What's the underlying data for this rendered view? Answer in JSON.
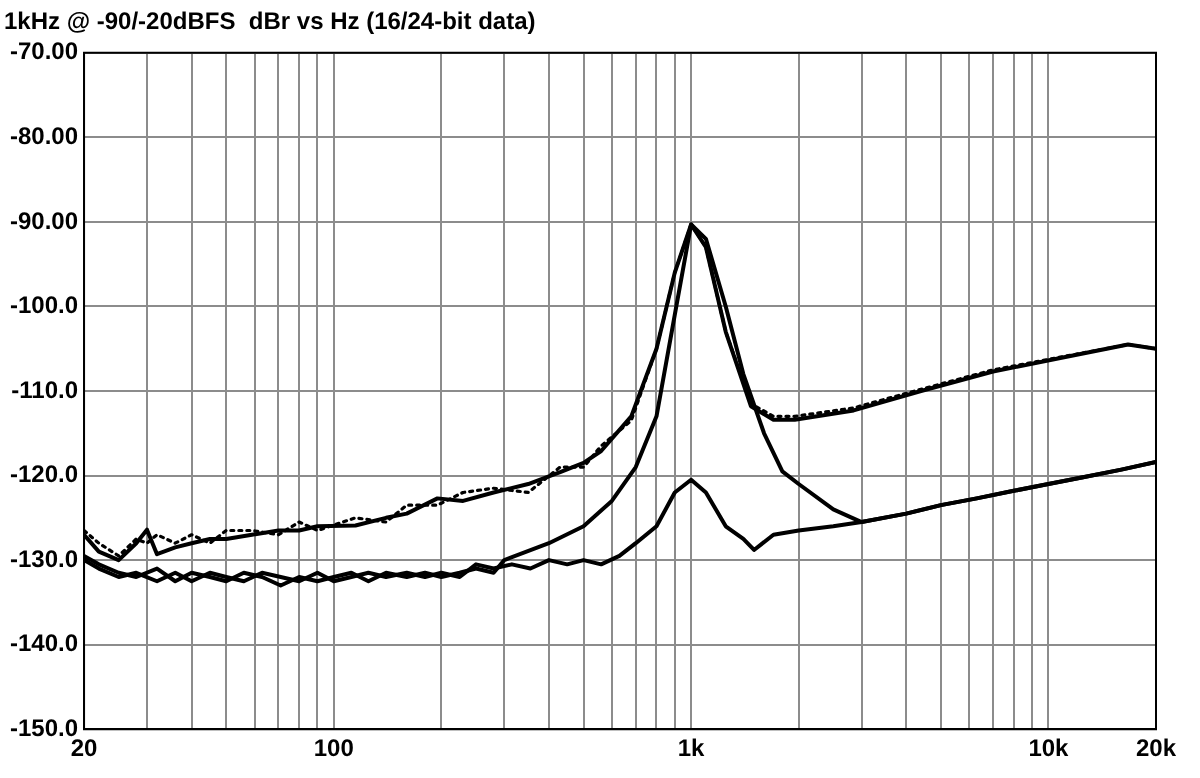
{
  "chart_data": {
    "type": "line",
    "title": "1kHz @ -90/-20dBFS  dBr vs Hz (16/24-bit data)",
    "log": "x",
    "grid": true,
    "legend": false,
    "xlim": [
      20,
      20000
    ],
    "ylim": [
      -150,
      -70
    ],
    "xticks": [
      20,
      {
        "value": 30,
        "label": null
      },
      {
        "value": 40,
        "label": null
      },
      {
        "value": 50,
        "label": null
      },
      {
        "value": 60,
        "label": null
      },
      {
        "value": 70,
        "label": null
      },
      {
        "value": 80,
        "label": null
      },
      {
        "value": 90,
        "label": null
      },
      100,
      {
        "value": 200,
        "label": null
      },
      {
        "value": 300,
        "label": null
      },
      {
        "value": 400,
        "label": null
      },
      {
        "value": 500,
        "label": null
      },
      {
        "value": 600,
        "label": null
      },
      {
        "value": 700,
        "label": null
      },
      {
        "value": 800,
        "label": null
      },
      {
        "value": 900,
        "label": null
      },
      {
        "value": 1000,
        "label": "1k"
      },
      {
        "value": 2000,
        "label": null
      },
      {
        "value": 3000,
        "label": null
      },
      {
        "value": 4000,
        "label": null
      },
      {
        "value": 5000,
        "label": null
      },
      {
        "value": 6000,
        "label": null
      },
      {
        "value": 7000,
        "label": null
      },
      {
        "value": 8000,
        "label": null
      },
      {
        "value": 9000,
        "label": null
      },
      {
        "value": 10000,
        "label": "10k"
      },
      {
        "value": 20000,
        "label": "20k"
      }
    ],
    "yticks": [
      {
        "value": -150,
        "label": "-150.0"
      },
      {
        "value": -140,
        "label": "-140.0"
      },
      {
        "value": -130,
        "label": "-130.0"
      },
      {
        "value": -120,
        "label": "-120.0"
      },
      {
        "value": -110,
        "label": "-110.0"
      },
      {
        "value": -100,
        "label": "-100.0"
      },
      {
        "value": -90,
        "label": "-90.00"
      },
      {
        "value": -80,
        "label": "-80.00"
      },
      {
        "value": -70,
        "label": "-70.00"
      }
    ],
    "series": [
      {
        "color": "#000000",
        "line_style": "solid",
        "x": [
          20,
          22,
          25,
          28,
          30,
          32,
          36,
          40,
          45,
          50,
          59,
          70,
          80,
          90,
          115,
          140,
          160,
          195,
          230,
          280,
          350,
          430,
          500,
          560,
          680,
          800,
          900,
          1000,
          1100,
          1250,
          1470,
          1700,
          1950,
          2850,
          4400,
          7000,
          10800,
          16700,
          20000
        ],
        "values": [
          -127,
          -129,
          -130,
          -128,
          -126.4,
          -129.3,
          -128.5,
          -128,
          -127.5,
          -127.5,
          -127,
          -126.5,
          -126.5,
          -126,
          -125.9,
          -125,
          -124.5,
          -122.7,
          -123,
          -122,
          -121,
          -119.6,
          -118.5,
          -117.1,
          -113,
          -105,
          -96,
          -90.3,
          -93,
          -103,
          -111.8,
          -113.4,
          -113.4,
          -112.3,
          -110,
          -107.7,
          -106.1,
          -104.5,
          -105
        ]
      },
      {
        "color": "#000000",
        "line_style": "dotted",
        "x": [
          20,
          22,
          25,
          28,
          30,
          32,
          36,
          40,
          45,
          50,
          59,
          70,
          80,
          90,
          115,
          140,
          160,
          195,
          230,
          280,
          350,
          430,
          500,
          560,
          680,
          800,
          900,
          1000,
          1100,
          1250,
          1470,
          1700,
          1950,
          2850,
          4400,
          7000,
          10800,
          16700,
          20000
        ],
        "values": [
          -126.5,
          -128,
          -129.5,
          -127.5,
          -128,
          -127,
          -128,
          -127,
          -128,
          -126.5,
          -126.5,
          -127,
          -125.5,
          -126.5,
          -125,
          -125.5,
          -123.5,
          -123.5,
          -122,
          -121.5,
          -122,
          -119,
          -119,
          -116.5,
          -113.5,
          -105,
          -96,
          -90.3,
          -93,
          -103,
          -111.5,
          -113,
          -113,
          -112,
          -109.8,
          -107.5,
          -106,
          -104.5,
          -105
        ]
      },
      {
        "color": "#000000",
        "line_style": "solid",
        "x": [
          20,
          22,
          25,
          28,
          32,
          36,
          40,
          45,
          50,
          56,
          63,
          71,
          80,
          90,
          100,
          112,
          125,
          140,
          160,
          180,
          200,
          225,
          250,
          280,
          300,
          400,
          500,
          600,
          700,
          800,
          900,
          1000,
          1100,
          1250,
          1400,
          1600,
          1800,
          2000,
          2500,
          3000,
          4000,
          5000,
          6300,
          8000,
          10000,
          12500,
          16000,
          20000
        ],
        "values": [
          -129.5,
          -130.5,
          -131.5,
          -132,
          -131,
          -132.5,
          -131.5,
          -132,
          -132.5,
          -131.5,
          -132,
          -133,
          -132,
          -132.5,
          -132,
          -131.5,
          -132.5,
          -131.5,
          -132,
          -131.5,
          -132,
          -131.5,
          -131,
          -131.5,
          -130,
          -128,
          -126,
          -123,
          -119,
          -113,
          -101,
          -90.3,
          -92,
          -100,
          -108,
          -115,
          -119.5,
          -121,
          -124,
          -125.5,
          -124.5,
          -123.5,
          -122.7,
          -121.8,
          -121,
          -120.2,
          -119.3,
          -118.4
        ]
      },
      {
        "color": "#000000",
        "line_style": "solid",
        "x": [
          20,
          22,
          25,
          28,
          32,
          36,
          40,
          45,
          50,
          56,
          63,
          71,
          80,
          90,
          100,
          112,
          125,
          140,
          160,
          180,
          200,
          225,
          250,
          280,
          315,
          355,
          400,
          450,
          500,
          560,
          630,
          700,
          800,
          900,
          1000,
          1100,
          1250,
          1400,
          1500,
          1700,
          2000,
          2500,
          3000,
          4000,
          5000,
          6300,
          8000,
          10000,
          12500,
          16000,
          20000
        ],
        "values": [
          -130,
          -131,
          -132,
          -131.5,
          -132.5,
          -131.5,
          -132.5,
          -131.5,
          -132,
          -132.5,
          -131.5,
          -132,
          -132.5,
          -131.5,
          -132.5,
          -132,
          -131.5,
          -132,
          -131.5,
          -132,
          -131.5,
          -132,
          -130.5,
          -131,
          -130.5,
          -131,
          -130,
          -130.5,
          -130,
          -130.5,
          -129.5,
          -128,
          -126,
          -122,
          -120.5,
          -122,
          -126,
          -127.5,
          -128.8,
          -127,
          -126.5,
          -126,
          -125.5,
          -124.5,
          -123.5,
          -122.7,
          -121.8,
          -121,
          -120.2,
          -119.3,
          -118.4
        ]
      }
    ]
  }
}
